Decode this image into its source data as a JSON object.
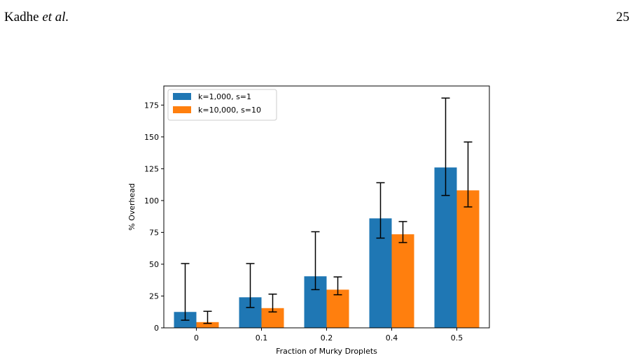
{
  "page_header": {
    "author": "Kadhe",
    "etal": "et al.",
    "page_number": "25"
  },
  "chart_data": {
    "type": "bar",
    "xlabel": "Fraction of Murky Droplets",
    "ylabel": "% Overhead",
    "categories": [
      "0",
      "0.1",
      "0.2",
      "0.4",
      "0.5"
    ],
    "ylim": [
      0,
      190
    ],
    "yticks": [
      0,
      25,
      50,
      75,
      100,
      125,
      150,
      175
    ],
    "grid": false,
    "legend_position": "top-left",
    "series": [
      {
        "name": "k=1,000, s=1",
        "color": "#1f77b4",
        "values": [
          12.5,
          24,
          40.5,
          86,
          126
        ],
        "err_low": [
          6,
          16,
          30,
          70.5,
          104
        ],
        "err_high": [
          50.5,
          50.5,
          75.5,
          114,
          180.5
        ]
      },
      {
        "name": "k=10,000, s=10",
        "color": "#ff7f0e",
        "values": [
          4.5,
          15.5,
          30,
          73.5,
          108
        ],
        "err_low": [
          3.5,
          12.5,
          26,
          67,
          95
        ],
        "err_high": [
          13,
          26.5,
          40,
          83.5,
          146
        ]
      }
    ]
  }
}
